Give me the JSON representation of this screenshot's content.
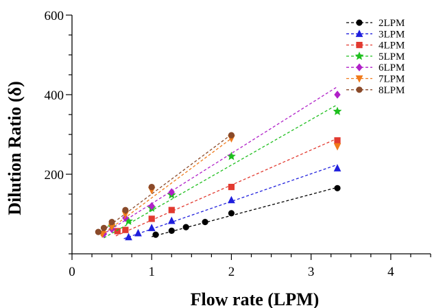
{
  "chart_data": {
    "type": "scatter",
    "xlabel": "Flow rate (LPM)",
    "ylabel": "Dilution Ratio (δ)",
    "xlim": [
      0,
      4.5
    ],
    "ylim": [
      0,
      600
    ],
    "x_ticks": [
      "0",
      "1",
      "2",
      "3",
      "4"
    ],
    "y_ticks": [
      "200",
      "400",
      "600"
    ],
    "y_tick_values": [
      200,
      400,
      600
    ],
    "legend_position": "top-right",
    "grid": false,
    "series": [
      {
        "name": "2LPM",
        "color": "#000000",
        "marker": "circle",
        "points": [
          [
            1.05,
            48
          ],
          [
            1.25,
            58
          ],
          [
            1.43,
            67
          ],
          [
            1.67,
            80
          ],
          [
            2.0,
            102
          ],
          [
            3.33,
            165
          ]
        ],
        "fit": [
          [
            1.0,
            43
          ],
          [
            3.33,
            167
          ]
        ]
      },
      {
        "name": "3LPM",
        "color": "#1f1fdd",
        "marker": "triangle",
        "points": [
          [
            0.71,
            42
          ],
          [
            0.83,
            52
          ],
          [
            1.0,
            65
          ],
          [
            1.25,
            83
          ],
          [
            2.0,
            135
          ],
          [
            3.33,
            215
          ]
        ],
        "fit": [
          [
            0.65,
            38
          ],
          [
            3.33,
            224
          ]
        ]
      },
      {
        "name": "4LPM",
        "color": "#e23a30",
        "marker": "square",
        "points": [
          [
            0.57,
            57
          ],
          [
            0.67,
            60
          ],
          [
            1.0,
            88
          ],
          [
            1.25,
            110
          ],
          [
            2.0,
            168
          ],
          [
            3.33,
            285
          ]
        ],
        "fit": [
          [
            0.55,
            45
          ],
          [
            3.33,
            290
          ]
        ]
      },
      {
        "name": "5LPM",
        "color": "#1fbf1f",
        "marker": "star",
        "points": [
          [
            0.5,
            68
          ],
          [
            0.71,
            82
          ],
          [
            1.0,
            115
          ],
          [
            1.25,
            148
          ],
          [
            2.0,
            245
          ],
          [
            3.33,
            358
          ]
        ],
        "fit": [
          [
            0.4,
            40
          ],
          [
            3.33,
            375
          ]
        ]
      },
      {
        "name": "6LPM",
        "color": "#b020c8",
        "marker": "diamond",
        "points": [
          [
            0.4,
            50
          ],
          [
            0.5,
            62
          ],
          [
            0.67,
            90
          ],
          [
            1.0,
            120
          ],
          [
            1.25,
            155
          ],
          [
            3.33,
            400
          ]
        ],
        "fit": [
          [
            0.38,
            48
          ],
          [
            3.33,
            420
          ]
        ]
      },
      {
        "name": "7LPM",
        "color": "#f07a1a",
        "marker": "triangle-down",
        "points": [
          [
            0.38,
            50
          ],
          [
            0.5,
            68
          ],
          [
            0.67,
            100
          ],
          [
            1.0,
            160
          ],
          [
            2.0,
            290
          ],
          [
            3.33,
            270
          ]
        ],
        "fit": [
          [
            0.36,
            45
          ],
          [
            2.0,
            290
          ]
        ]
      },
      {
        "name": "8LPM",
        "color": "#8a4a2a",
        "marker": "circle",
        "points": [
          [
            0.33,
            55
          ],
          [
            0.4,
            65
          ],
          [
            0.5,
            80
          ],
          [
            0.67,
            110
          ],
          [
            1.0,
            168
          ],
          [
            2.0,
            298
          ]
        ],
        "fit": [
          [
            0.33,
            50
          ],
          [
            2.0,
            300
          ]
        ]
      }
    ]
  }
}
